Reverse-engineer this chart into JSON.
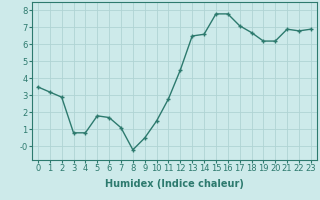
{
  "x": [
    0,
    1,
    2,
    3,
    4,
    5,
    6,
    7,
    8,
    9,
    10,
    11,
    12,
    13,
    14,
    15,
    16,
    17,
    18,
    19,
    20,
    21,
    22,
    23
  ],
  "y": [
    3.5,
    3.2,
    2.9,
    0.8,
    0.8,
    1.8,
    1.7,
    1.1,
    -0.2,
    0.5,
    1.5,
    2.8,
    4.5,
    6.5,
    6.6,
    7.8,
    7.8,
    7.1,
    6.7,
    6.2,
    6.2,
    6.9,
    6.8,
    6.9
  ],
  "line_color": "#2d7a6e",
  "marker": "+",
  "marker_size": 3.5,
  "line_width": 1.0,
  "bg_color": "#cdeaea",
  "grid_color": "#b0d4d4",
  "xlabel": "Humidex (Indice chaleur)",
  "xlabel_fontsize": 7,
  "tick_fontsize": 6,
  "xlim": [
    -0.5,
    23.5
  ],
  "ylim": [
    -0.8,
    8.5
  ],
  "yticks": [
    0,
    1,
    2,
    3,
    4,
    5,
    6,
    7,
    8
  ],
  "ytick_labels": [
    "-0",
    "1",
    "2",
    "3",
    "4",
    "5",
    "6",
    "7",
    "8"
  ],
  "xticks": [
    0,
    1,
    2,
    3,
    4,
    5,
    6,
    7,
    8,
    9,
    10,
    11,
    12,
    13,
    14,
    15,
    16,
    17,
    18,
    19,
    20,
    21,
    22,
    23
  ]
}
